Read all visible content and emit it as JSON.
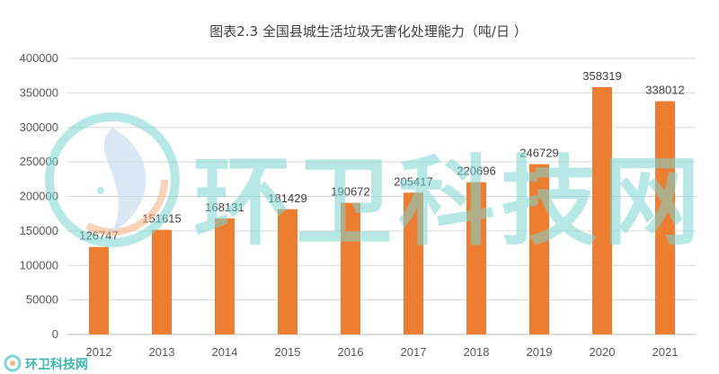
{
  "chart_data": {
    "type": "bar",
    "title": "图表2.3 全国县城生活垃圾无害化处理能力（吨/日 ）",
    "xlabel": "",
    "ylabel": "",
    "categories": [
      "2012",
      "2013",
      "2014",
      "2015",
      "2016",
      "2017",
      "2018",
      "2019",
      "2020",
      "2021"
    ],
    "values": [
      126747,
      151615,
      168131,
      181429,
      190672,
      205417,
      220696,
      246729,
      358319,
      338012
    ],
    "ylim": [
      0,
      400000
    ],
    "yticks": [
      0,
      50000,
      100000,
      150000,
      200000,
      250000,
      300000,
      350000,
      400000
    ],
    "grid": true,
    "legend": "none",
    "bar_color": "#ED7D31"
  },
  "watermark": {
    "text": "环卫科技网",
    "logo_text": "环卫科技网",
    "color": "#7FD6D0"
  }
}
